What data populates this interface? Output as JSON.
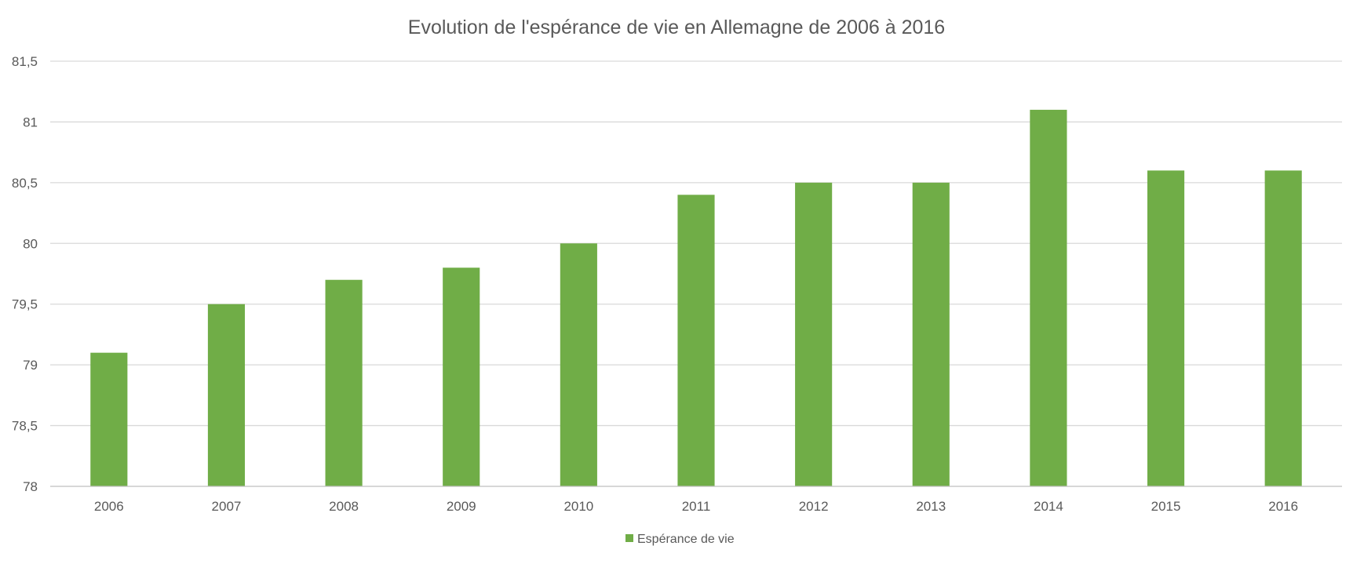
{
  "chart_data": {
    "type": "bar",
    "title": "Evolution de l'espérance de vie en Allemagne de 2006 à 2016",
    "xlabel": "",
    "ylabel": "",
    "categories": [
      "2006",
      "2007",
      "2008",
      "2009",
      "2010",
      "2011",
      "2012",
      "2013",
      "2014",
      "2015",
      "2016"
    ],
    "series": [
      {
        "name": "Espérance de vie",
        "values": [
          79.1,
          79.5,
          79.7,
          79.8,
          80.0,
          80.4,
          80.5,
          80.5,
          81.1,
          80.6,
          80.6
        ],
        "color": "#70ad47"
      }
    ],
    "ylim": [
      78,
      81.5
    ],
    "y_ticks": [
      78,
      78.5,
      79,
      79.5,
      80,
      80.5,
      81,
      81.5
    ],
    "y_tick_labels": [
      "78",
      "78,5",
      "79",
      "79,5",
      "80",
      "80,5",
      "81",
      "81,5"
    ],
    "grid": true,
    "legend_position": "bottom",
    "colors": {
      "gridline": "#d9d9d9",
      "axis": "#bfbfbf",
      "text": "#595959",
      "title": "#595959"
    }
  }
}
